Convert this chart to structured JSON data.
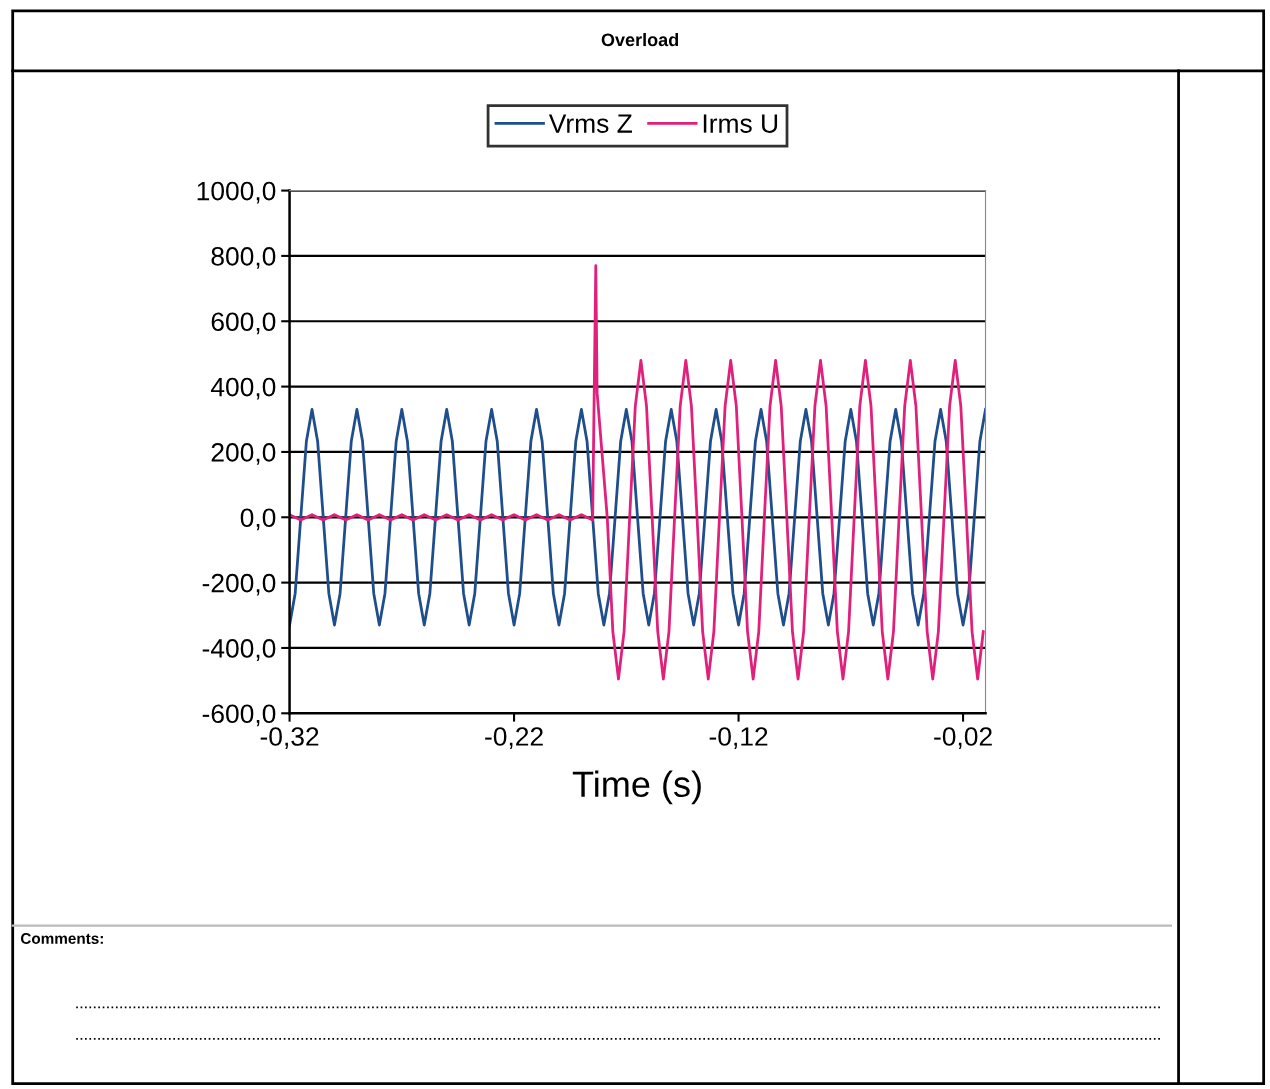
{
  "chart_data": {
    "type": "line",
    "title": "Overload",
    "xlabel": "Time (s)",
    "xlim": [
      -0.32,
      -0.01
    ],
    "ylim": [
      -600,
      1000
    ],
    "xticks": [
      {
        "value": -0.32,
        "label": "-0,32"
      },
      {
        "value": -0.22,
        "label": "-0,22"
      },
      {
        "value": -0.12,
        "label": "-0,12"
      },
      {
        "value": -0.02,
        "label": "-0,02"
      }
    ],
    "yticks": [
      {
        "value": -600,
        "label": "-600,0"
      },
      {
        "value": -400,
        "label": "-400,0"
      },
      {
        "value": -200,
        "label": "-200,0"
      },
      {
        "value": 0,
        "label": "0,0"
      },
      {
        "value": 200,
        "label": "200,0"
      },
      {
        "value": 400,
        "label": "400,0"
      },
      {
        "value": 600,
        "label": "600,0"
      },
      {
        "value": 800,
        "label": "800,0"
      },
      {
        "value": 1000,
        "label": "1000,0"
      }
    ],
    "grid": "y",
    "legend": "top",
    "marker": "none",
    "line_style": "solid",
    "annotations": [
      "Comments:"
    ],
    "series": [
      {
        "name": "Vrms Z",
        "color": "#1f4e8c",
        "x": [
          -0.32,
          -0.3175,
          -0.315,
          -0.3125,
          -0.31,
          -0.3075,
          -0.305,
          -0.3025,
          -0.3,
          -0.2975,
          -0.295,
          -0.2925,
          -0.29,
          -0.2875,
          -0.285,
          -0.2825,
          -0.28,
          -0.2775,
          -0.275,
          -0.2725,
          -0.27,
          -0.2675,
          -0.265,
          -0.2625,
          -0.26,
          -0.2575,
          -0.255,
          -0.2525,
          -0.25,
          -0.2475,
          -0.245,
          -0.2425,
          -0.24,
          -0.2375,
          -0.235,
          -0.2325,
          -0.23,
          -0.2275,
          -0.225,
          -0.2225,
          -0.22,
          -0.2175,
          -0.215,
          -0.2125,
          -0.21,
          -0.2075,
          -0.205,
          -0.2025,
          -0.2,
          -0.1975,
          -0.195,
          -0.1925,
          -0.19,
          -0.1875,
          -0.185,
          -0.1825,
          -0.18,
          -0.1775,
          -0.175,
          -0.1725,
          -0.17,
          -0.1675,
          -0.165,
          -0.1625,
          -0.16,
          -0.1575,
          -0.155,
          -0.1525,
          -0.15,
          -0.1475,
          -0.145,
          -0.1425,
          -0.14,
          -0.1375,
          -0.135,
          -0.1325,
          -0.13,
          -0.1275,
          -0.125,
          -0.1225,
          -0.12,
          -0.1175,
          -0.115,
          -0.1125,
          -0.11,
          -0.1075,
          -0.105,
          -0.1025,
          -0.1,
          -0.0975,
          -0.095,
          -0.0925,
          -0.09,
          -0.0875,
          -0.085,
          -0.0825,
          -0.08,
          -0.0775,
          -0.075,
          -0.0725,
          -0.07,
          -0.0675,
          -0.065,
          -0.0625,
          -0.06,
          -0.0575,
          -0.055,
          -0.0525,
          -0.05,
          -0.0475,
          -0.045,
          -0.0425,
          -0.04,
          -0.0375,
          -0.035,
          -0.0325,
          -0.03,
          -0.0275,
          -0.025,
          -0.0225,
          -0.02,
          -0.0175,
          -0.015,
          -0.0125,
          -0.01
        ],
        "values": [
          -330,
          -233,
          0,
          233,
          330,
          233,
          0,
          -233,
          -330,
          -233,
          0,
          233,
          330,
          233,
          0,
          -233,
          -330,
          -233,
          0,
          233,
          330,
          233,
          0,
          -233,
          -330,
          -233,
          0,
          233,
          330,
          233,
          0,
          -233,
          -330,
          -233,
          0,
          233,
          330,
          233,
          0,
          -233,
          -330,
          -233,
          0,
          233,
          330,
          233,
          0,
          -233,
          -330,
          -233,
          0,
          233,
          330,
          233,
          0,
          -233,
          -330,
          -233,
          0,
          233,
          330,
          233,
          0,
          -233,
          -330,
          -233,
          0,
          233,
          330,
          233,
          0,
          -233,
          -330,
          -233,
          0,
          233,
          330,
          233,
          0,
          -233,
          -330,
          -233,
          0,
          233,
          330,
          233,
          0,
          -233,
          -330,
          -233,
          0,
          233,
          330,
          233,
          0,
          -233,
          -330,
          -233,
          0,
          233,
          330,
          233,
          0,
          -233,
          -330,
          -233,
          0,
          233,
          330,
          233,
          0,
          -233,
          -330,
          -233,
          0,
          233,
          330,
          233,
          0,
          -233,
          -330,
          -233,
          0,
          233,
          330
        ]
      },
      {
        "name": "Irms U",
        "color": "#e0207a",
        "x": [
          -0.32,
          -0.315,
          -0.31,
          -0.305,
          -0.3,
          -0.295,
          -0.29,
          -0.285,
          -0.28,
          -0.275,
          -0.27,
          -0.265,
          -0.26,
          -0.255,
          -0.25,
          -0.245,
          -0.24,
          -0.235,
          -0.23,
          -0.225,
          -0.22,
          -0.215,
          -0.21,
          -0.205,
          -0.2,
          -0.195,
          -0.19,
          -0.185,
          -0.1836,
          -0.183,
          -0.1785,
          -0.176,
          -0.1735,
          -0.171,
          -0.1685,
          -0.166,
          -0.1635,
          -0.161,
          -0.1585,
          -0.156,
          -0.1535,
          -0.151,
          -0.1485,
          -0.146,
          -0.1435,
          -0.141,
          -0.1385,
          -0.136,
          -0.1335,
          -0.131,
          -0.1285,
          -0.126,
          -0.1235,
          -0.121,
          -0.1185,
          -0.116,
          -0.1135,
          -0.111,
          -0.1085,
          -0.106,
          -0.1035,
          -0.101,
          -0.0985,
          -0.096,
          -0.0935,
          -0.091,
          -0.0885,
          -0.086,
          -0.0835,
          -0.081,
          -0.0785,
          -0.076,
          -0.0735,
          -0.071,
          -0.0685,
          -0.066,
          -0.0635,
          -0.061,
          -0.0585,
          -0.056,
          -0.0535,
          -0.051,
          -0.0485,
          -0.046,
          -0.0435,
          -0.041,
          -0.0385,
          -0.036,
          -0.0335,
          -0.031,
          -0.0285,
          -0.026,
          -0.0235,
          -0.021,
          -0.0185,
          -0.016,
          -0.0135,
          -0.011
        ],
        "values": [
          8,
          -8,
          8,
          -8,
          8,
          -8,
          8,
          -8,
          8,
          -8,
          8,
          -8,
          8,
          -8,
          8,
          -8,
          8,
          -8,
          8,
          -8,
          8,
          -8,
          8,
          -8,
          8,
          -8,
          8,
          -8,
          770,
          380,
          0,
          -350,
          -495,
          -350,
          0,
          340,
          480,
          340,
          0,
          -350,
          -495,
          -350,
          0,
          340,
          480,
          340,
          0,
          -350,
          -495,
          -350,
          0,
          340,
          480,
          340,
          0,
          -350,
          -495,
          -350,
          0,
          340,
          480,
          340,
          0,
          -350,
          -495,
          -350,
          0,
          340,
          480,
          340,
          0,
          -350,
          -495,
          -350,
          0,
          340,
          480,
          340,
          0,
          -350,
          -495,
          -350,
          0,
          340,
          480,
          340,
          0,
          -350,
          -495,
          -350,
          0,
          340,
          480,
          340,
          0,
          -350,
          -495,
          -350
        ]
      }
    ]
  }
}
